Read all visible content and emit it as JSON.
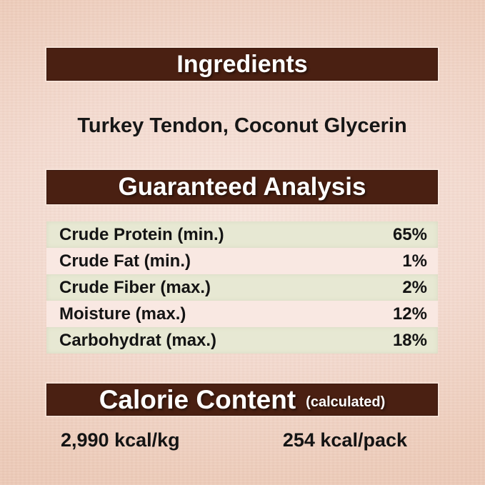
{
  "colors": {
    "background": "#edccba",
    "bar_brown": "#4a2012",
    "row_green": "#e7e8d3",
    "row_pink": "#f9e8e2",
    "header_text": "#ffffff",
    "body_text": "#141414"
  },
  "sections": {
    "ingredients": {
      "title": "Ingredients",
      "list": "Turkey Tendon, Coconut Glycerin"
    },
    "guaranteed_analysis": {
      "title": "Guaranteed Analysis",
      "rows": [
        {
          "label": "Crude Protein (min.)",
          "value": "65%"
        },
        {
          "label": "Crude Fat (min.)",
          "value": "1%"
        },
        {
          "label": "Crude Fiber (max.)",
          "value": "2%"
        },
        {
          "label": "Moisture (max.)",
          "value": "12%"
        },
        {
          "label": "Carbohydrat (max.)",
          "value": "18%"
        }
      ]
    },
    "calorie_content": {
      "title": "Calorie Content",
      "subtitle": "(calculated)",
      "per_kg": "2,990 kcal/kg",
      "per_pack": "254 kcal/pack"
    }
  }
}
